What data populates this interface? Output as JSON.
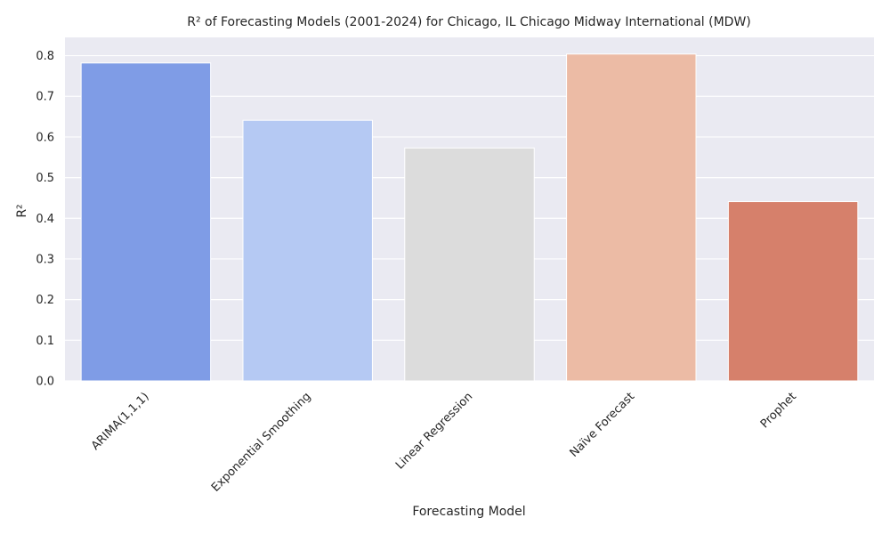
{
  "chart_data": {
    "type": "bar",
    "title": "R² of Forecasting Models (2001-2024) for Chicago, IL Chicago Midway International (MDW)",
    "xlabel": "Forecasting Model",
    "ylabel": "R²",
    "categories": [
      "ARIMA(1,1,1)",
      "Exponential Smoothing",
      "Linear Regression",
      "Naïve Forecast",
      "Prophet"
    ],
    "values": [
      0.782,
      0.641,
      0.573,
      0.804,
      0.441
    ],
    "colors": [
      "#7f9ce6",
      "#b5c9f3",
      "#dcdcdc",
      "#ecbba5",
      "#d6806b"
    ],
    "ylim": [
      0,
      0.845
    ],
    "yticks": [
      "0.0",
      "0.1",
      "0.2",
      "0.3",
      "0.4",
      "0.5",
      "0.6",
      "0.7",
      "0.8"
    ],
    "ytick_values": [
      0,
      0.1,
      0.2,
      0.3,
      0.4,
      0.5,
      0.6,
      0.7,
      0.8
    ],
    "grid": true,
    "legend": "none",
    "background": "#eaeaf2",
    "grid_color": "#ffffff"
  }
}
